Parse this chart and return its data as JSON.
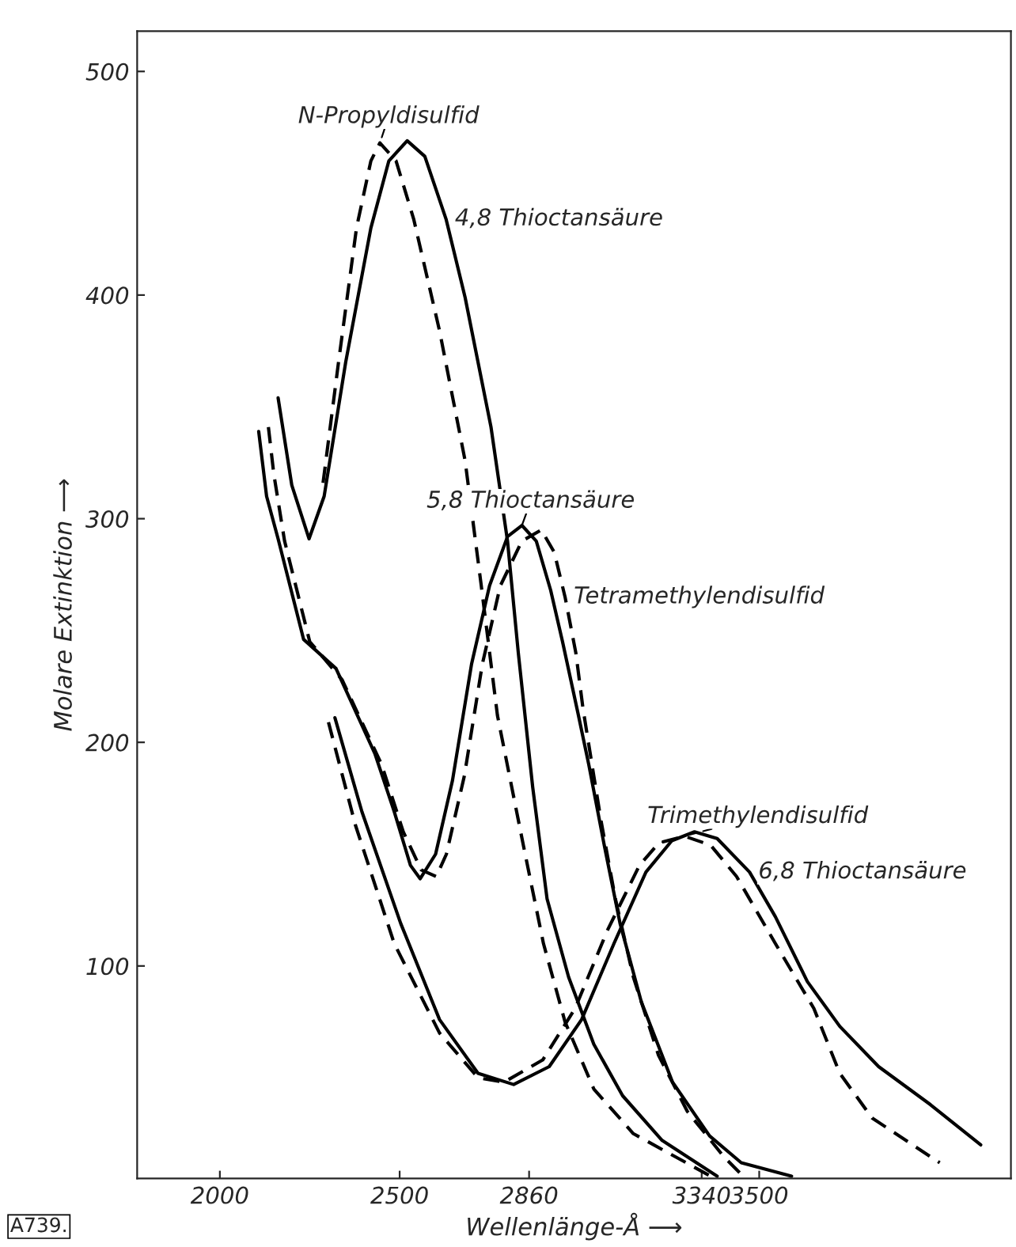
{
  "chart_data": {
    "type": "line",
    "xlabel": "Wellenlänge-Å ⟶",
    "ylabel": "Molare Extinktion ⟶",
    "xlim": [
      1770,
      4200
    ],
    "ylim": [
      5,
      518
    ],
    "xticks": [
      2000,
      2500,
      2860,
      3340,
      3500
    ],
    "yticks": [
      100,
      200,
      300,
      400,
      500
    ],
    "grid": false,
    "legend": false,
    "marker": "none",
    "annotations": [
      "A739."
    ],
    "series": [
      {
        "name": "N-Propyldisulfid",
        "color": "#000000",
        "line_style": "dashed",
        "x": [
          2287,
          2330,
          2380,
          2420,
          2445,
          2490,
          2539,
          2611,
          2682,
          2727,
          2772,
          2844,
          2900,
          2960,
          3040,
          3150,
          3365
        ],
        "values": [
          316,
          370,
          430,
          460,
          468,
          460,
          434,
          384,
          326,
          270,
          212,
          154,
          110,
          75,
          45,
          25,
          6
        ]
      },
      {
        "name": "4,8 Thioctansäure",
        "color": "#000000",
        "line_style": "solid",
        "x": [
          2162,
          2200,
          2248,
          2290,
          2350,
          2420,
          2470,
          2521,
          2570,
          2629,
          2682,
          2754,
          2800,
          2830,
          2870,
          2910,
          2970,
          3040,
          3120,
          3230,
          3383
        ],
        "values": [
          354,
          315,
          291,
          310,
          370,
          430,
          460,
          469,
          462,
          434,
          399,
          341,
          290,
          240,
          180,
          130,
          95,
          65,
          42,
          22,
          6
        ]
      },
      {
        "name": "5,8 Thioctansäure",
        "color": "#000000",
        "line_style": "solid",
        "x": [
          2108,
          2130,
          2162,
          2233,
          2323,
          2431,
          2485,
          2530,
          2557,
          2600,
          2647,
          2700,
          2750,
          2800,
          2840,
          2880,
          2920,
          2953,
          2996,
          3026,
          3069,
          3113,
          3172,
          3259,
          3362,
          3450,
          3590
        ],
        "values": [
          339,
          310,
          291,
          246,
          233,
          195,
          169,
          145,
          139,
          150,
          183,
          235,
          270,
          292,
          297,
          290,
          268,
          245,
          213,
          190,
          154,
          119,
          84,
          48,
          24,
          12,
          6
        ]
      },
      {
        "name": "Tetramethylendisulfid",
        "color": "#000000",
        "line_style": "dashed",
        "x": [
          2135,
          2150,
          2180,
          2250,
          2340,
          2450,
          2510,
          2560,
          2602,
          2630,
          2680,
          2730,
          2780,
          2840,
          2894,
          2930,
          2960,
          2990,
          3010,
          3030,
          3060,
          3100,
          3150,
          3220,
          3300,
          3400,
          3455
        ],
        "values": [
          341,
          320,
          290,
          245,
          228,
          190,
          160,
          143,
          140,
          150,
          185,
          235,
          270,
          290,
          295,
          285,
          265,
          240,
          215,
          195,
          165,
          130,
          95,
          60,
          35,
          15,
          6
        ]
      },
      {
        "name": "Trimethylendisulfid",
        "color": "#000000",
        "line_style": "dashed",
        "x": [
          2302,
          2377,
          2485,
          2611,
          2718,
          2790,
          2898,
          2988,
          3078,
          3167,
          3221,
          3293,
          3365,
          3437,
          3545,
          3652,
          3724,
          3814,
          4002
        ],
        "values": [
          209,
          163,
          110,
          70,
          50,
          48,
          58,
          81,
          116,
          145,
          155,
          158,
          154,
          140,
          110,
          81,
          52,
          32,
          12
        ]
      },
      {
        "name": "6,8 Thioctansäure",
        "color": "#000000",
        "line_style": "solid",
        "x": [
          2320,
          2395,
          2503,
          2611,
          2718,
          2817,
          2916,
          3006,
          3096,
          3185,
          3257,
          3320,
          3383,
          3473,
          3545,
          3634,
          3724,
          3832,
          3976,
          4116
        ],
        "values": [
          211,
          169,
          119,
          76,
          52,
          47,
          55,
          76,
          110,
          142,
          156,
          160,
          157,
          142,
          122,
          93,
          73,
          55,
          38,
          20
        ]
      }
    ]
  }
}
